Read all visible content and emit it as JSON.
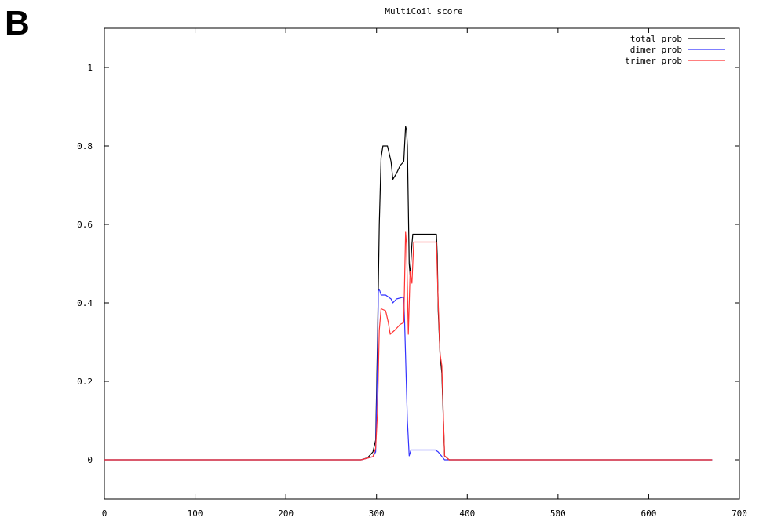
{
  "panel_label": "B",
  "chart_data": {
    "type": "line",
    "title": "MultiCoil score",
    "xlabel": "",
    "ylabel": "",
    "xlim": [
      0,
      700
    ],
    "ylim": [
      -0.1,
      1.1
    ],
    "x_ticks": [
      0,
      100,
      200,
      300,
      400,
      500,
      600,
      700
    ],
    "x_tick_labels": [
      "0",
      "100",
      "200",
      "300",
      "400",
      "500",
      "600",
      "700"
    ],
    "y_ticks": [
      0,
      0.2,
      0.4,
      0.6,
      0.8,
      1
    ],
    "y_tick_labels": [
      "0",
      "0.2",
      "0.4",
      "0.6",
      "0.8",
      "1"
    ],
    "grid": false,
    "legend_position": "top-right",
    "series": [
      {
        "name": "total prob",
        "color": "#000000",
        "points": [
          [
            0,
            0
          ],
          [
            283,
            0
          ],
          [
            290,
            0.005
          ],
          [
            296,
            0.02
          ],
          [
            299,
            0.05
          ],
          [
            301,
            0.3
          ],
          [
            303,
            0.6
          ],
          [
            305,
            0.77
          ],
          [
            307,
            0.8
          ],
          [
            312,
            0.8
          ],
          [
            316,
            0.76
          ],
          [
            318,
            0.715
          ],
          [
            322,
            0.73
          ],
          [
            326,
            0.75
          ],
          [
            330,
            0.76
          ],
          [
            332,
            0.85
          ],
          [
            333,
            0.84
          ],
          [
            334,
            0.8
          ],
          [
            336,
            0.5
          ],
          [
            337,
            0.47
          ],
          [
            339,
            0.55
          ],
          [
            340,
            0.575
          ],
          [
            366,
            0.575
          ],
          [
            367,
            0.52
          ],
          [
            368,
            0.38
          ],
          [
            370,
            0.27
          ],
          [
            372,
            0.22
          ],
          [
            375,
            0.01
          ],
          [
            380,
            0
          ],
          [
            670,
            0
          ]
        ]
      },
      {
        "name": "dimer prob",
        "color": "#3333ff",
        "points": [
          [
            0,
            0
          ],
          [
            283,
            0
          ],
          [
            296,
            0.008
          ],
          [
            299,
            0.02
          ],
          [
            301,
            0.25
          ],
          [
            302,
            0.43
          ],
          [
            303,
            0.435
          ],
          [
            305,
            0.42
          ],
          [
            310,
            0.42
          ],
          [
            316,
            0.41
          ],
          [
            318,
            0.4
          ],
          [
            322,
            0.41
          ],
          [
            330,
            0.415
          ],
          [
            331,
            0.35
          ],
          [
            334,
            0.1
          ],
          [
            336,
            0.01
          ],
          [
            338,
            0.025
          ],
          [
            365,
            0.025
          ],
          [
            368,
            0.02
          ],
          [
            375,
            0
          ],
          [
            670,
            0
          ]
        ]
      },
      {
        "name": "trimer prob",
        "color": "#ff3333",
        "points": [
          [
            0,
            0
          ],
          [
            283,
            0
          ],
          [
            296,
            0.008
          ],
          [
            299,
            0.03
          ],
          [
            301,
            0.12
          ],
          [
            303,
            0.33
          ],
          [
            305,
            0.385
          ],
          [
            310,
            0.38
          ],
          [
            313,
            0.35
          ],
          [
            315,
            0.32
          ],
          [
            320,
            0.33
          ],
          [
            326,
            0.345
          ],
          [
            330,
            0.35
          ],
          [
            332,
            0.58
          ],
          [
            333,
            0.55
          ],
          [
            335,
            0.32
          ],
          [
            337,
            0.48
          ],
          [
            339,
            0.45
          ],
          [
            341,
            0.555
          ],
          [
            366,
            0.555
          ],
          [
            368,
            0.4
          ],
          [
            370,
            0.27
          ],
          [
            372,
            0.24
          ],
          [
            375,
            0.01
          ],
          [
            380,
            0
          ],
          [
            670,
            0
          ]
        ]
      }
    ]
  }
}
